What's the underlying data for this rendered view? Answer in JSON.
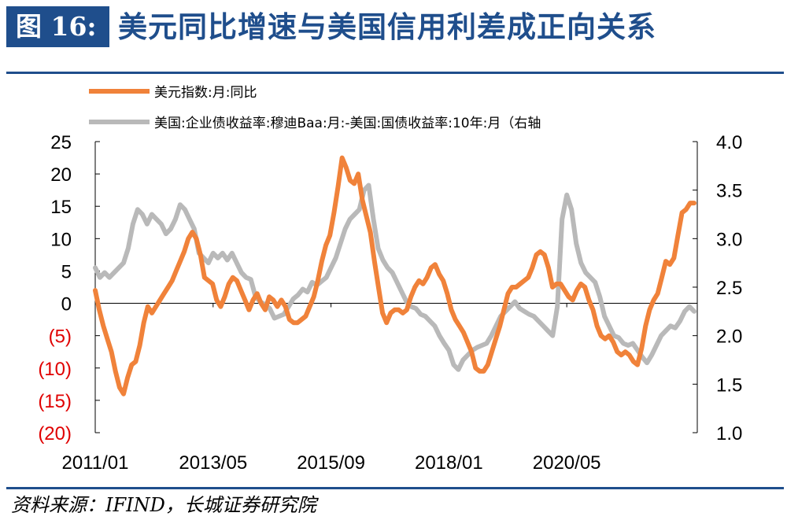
{
  "figure": {
    "label": "图 16:",
    "title": "美元同比增速与美国信用利差成正向关系"
  },
  "source": "资料来源：IFIND，长城证券研究院",
  "colors": {
    "accent": "#1f4e8c",
    "series_left": "#f0823a",
    "series_right": "#b9b9b9",
    "negative_tick": "#e00000"
  },
  "chart_data": {
    "type": "line",
    "title": "",
    "xlabel": "",
    "x_tick_labels": [
      "2011/01",
      "2013/05",
      "2015/09",
      "2018/01",
      "2020/05"
    ],
    "x_tick_dates": [
      "2011-01",
      "2013-05",
      "2015-09",
      "2018-01",
      "2020-05"
    ],
    "x_range": [
      "2011-01",
      "2022-12"
    ],
    "y_left": {
      "range": [
        -20,
        25
      ],
      "ticks": [
        25,
        20,
        15,
        10,
        5,
        0,
        -5,
        -10,
        -15,
        -20
      ],
      "tick_labels": [
        "25",
        "20",
        "15",
        "10",
        "5",
        "0",
        "(5)",
        "(10)",
        "(15)",
        "(20)"
      ]
    },
    "y_right": {
      "range": [
        1.0,
        4.0
      ],
      "ticks": [
        4.0,
        3.5,
        3.0,
        2.5,
        2.0,
        1.5,
        1.0
      ],
      "tick_labels": [
        "4.0",
        "3.5",
        "3.0",
        "2.5",
        "2.0",
        "1.5",
        "1.0"
      ]
    },
    "legend_position": "top",
    "series": [
      {
        "name": "美元指数:月:同比",
        "axis": "left",
        "color": "#f0823a",
        "values": [
          2.0,
          -1.0,
          -3.5,
          -5.5,
          -7.5,
          -10.5,
          -13.0,
          -14.0,
          -11.5,
          -9.5,
          -9.0,
          -6.5,
          -3.0,
          -0.5,
          -1.5,
          -0.5,
          0.5,
          1.5,
          2.5,
          3.5,
          5.0,
          6.5,
          8.0,
          10.0,
          11.0,
          10.0,
          7.5,
          4.0,
          3.5,
          3.0,
          0.5,
          -0.5,
          1.0,
          3.0,
          4.0,
          3.5,
          2.0,
          0.5,
          -1.0,
          0.5,
          1.5,
          0.0,
          -1.0,
          1.0,
          0.5,
          -0.5,
          0.5,
          -0.5,
          -2.5,
          -3.0,
          -3.0,
          -2.5,
          -2.0,
          -0.5,
          1.0,
          3.5,
          6.5,
          9.0,
          10.5,
          14.0,
          18.0,
          22.5,
          21.0,
          19.0,
          18.5,
          20.0,
          16.0,
          13.5,
          11.0,
          6.5,
          2.5,
          -1.5,
          -3.0,
          -1.5,
          -1.0,
          -1.0,
          -1.5,
          -1.0,
          1.0,
          2.5,
          3.5,
          3.0,
          4.0,
          5.5,
          6.0,
          4.5,
          3.5,
          1.5,
          -1.0,
          -2.5,
          -3.5,
          -4.5,
          -6.0,
          -7.5,
          -10.0,
          -10.5,
          -10.5,
          -9.5,
          -7.5,
          -5.5,
          -3.5,
          -1.0,
          1.5,
          2.5,
          2.5,
          3.0,
          3.5,
          4.0,
          5.5,
          7.5,
          8.0,
          7.5,
          5.5,
          2.5,
          3.0,
          3.0,
          2.0,
          1.0,
          0.5,
          2.0,
          3.0,
          2.5,
          0.5,
          -1.0,
          -3.5,
          -5.0,
          -5.5,
          -5.0,
          -6.0,
          -7.5,
          -8.0,
          -7.5,
          -8.0,
          -9.0,
          -9.5,
          -7.0,
          -3.5,
          -1.0,
          0.5,
          1.5,
          4.0,
          6.5,
          6.0,
          7.0,
          10.5,
          14.0,
          14.5,
          15.5,
          15.5
        ]
      },
      {
        "name": "美国:企业债收益率:穆迪Baa:月:-美国:国债收益率:10年:月（右轴",
        "axis": "right",
        "color": "#b9b9b9",
        "values": [
          2.7,
          2.6,
          2.65,
          2.6,
          2.65,
          2.7,
          2.75,
          2.9,
          3.15,
          3.3,
          3.25,
          3.15,
          3.25,
          3.2,
          3.15,
          3.05,
          3.1,
          3.2,
          3.35,
          3.3,
          3.2,
          3.1,
          2.85,
          2.8,
          2.75,
          2.85,
          2.8,
          2.85,
          2.78,
          2.85,
          2.75,
          2.65,
          2.6,
          2.58,
          2.4,
          2.35,
          2.32,
          2.28,
          2.18,
          2.2,
          2.22,
          2.3,
          2.38,
          2.42,
          2.48,
          2.45,
          2.55,
          2.52,
          2.56,
          2.6,
          2.7,
          2.8,
          2.95,
          3.1,
          3.2,
          3.25,
          3.3,
          3.5,
          3.55,
          3.2,
          2.9,
          2.78,
          2.7,
          2.65,
          2.55,
          2.45,
          2.35,
          2.3,
          2.28,
          2.22,
          2.2,
          2.15,
          2.1,
          2.0,
          1.92,
          1.85,
          1.7,
          1.65,
          1.75,
          1.8,
          1.85,
          1.88,
          1.9,
          1.92,
          2.0,
          2.1,
          2.2,
          2.25,
          2.3,
          2.35,
          2.28,
          2.25,
          2.22,
          2.2,
          2.15,
          2.1,
          2.05,
          2.0,
          2.3,
          3.2,
          3.45,
          3.3,
          2.95,
          2.75,
          2.65,
          2.6,
          2.55,
          2.4,
          2.2,
          2.1,
          2.0,
          1.98,
          1.92,
          1.9,
          1.92,
          1.85,
          1.78,
          1.72,
          1.8,
          1.9,
          2.0,
          2.05,
          2.1,
          2.08,
          2.15,
          2.25,
          2.3,
          2.25
        ]
      }
    ]
  }
}
